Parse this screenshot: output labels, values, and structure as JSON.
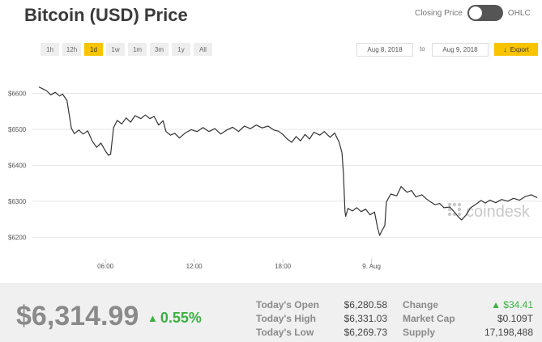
{
  "header": {
    "title": "Bitcoin (USD) Price",
    "toggle_left": "Closing Price",
    "toggle_right": "OHLC"
  },
  "ranges": [
    "1h",
    "12h",
    "1d",
    "1w",
    "1m",
    "3m",
    "1y",
    "All"
  ],
  "active_range": "1d",
  "date_from": "Aug 8, 2018",
  "date_to_word": "to",
  "date_to": "Aug 9, 2018",
  "export_label": "Export",
  "watermark": "coindesk",
  "colors": {
    "accent": "#f8c400",
    "line": "#333333",
    "positive": "#3cb043"
  },
  "chart_data": {
    "type": "line",
    "title": "",
    "xlabel": "",
    "ylabel": "",
    "ylim": [
      6140,
      6680
    ],
    "xlim": [
      1.5,
      35.2
    ],
    "y_ticks": [
      {
        "value": 6200,
        "label": "$6200"
      },
      {
        "value": 6300,
        "label": "$6300"
      },
      {
        "value": 6400,
        "label": "$6400"
      },
      {
        "value": 6500,
        "label": "$6500"
      },
      {
        "value": 6600,
        "label": "$6600"
      }
    ],
    "x_ticks": [
      {
        "value": 6,
        "label": "06:00"
      },
      {
        "value": 12,
        "label": "12:00"
      },
      {
        "value": 18,
        "label": "18:00"
      },
      {
        "value": 24,
        "label": "9. Aug"
      }
    ],
    "grid": true,
    "series": [
      {
        "values": [
          [
            1.5,
            6618
          ],
          [
            2.0,
            6608
          ],
          [
            2.3,
            6596
          ],
          [
            2.6,
            6603
          ],
          [
            2.9,
            6593
          ],
          [
            3.1,
            6598
          ],
          [
            3.4,
            6580
          ],
          [
            3.7,
            6503
          ],
          [
            3.9,
            6488
          ],
          [
            4.2,
            6498
          ],
          [
            4.5,
            6487
          ],
          [
            4.8,
            6496
          ],
          [
            5.1,
            6468
          ],
          [
            5.4,
            6450
          ],
          [
            5.7,
            6462
          ],
          [
            6.0,
            6440
          ],
          [
            6.2,
            6428
          ],
          [
            6.35,
            6430
          ],
          [
            6.55,
            6505
          ],
          [
            6.8,
            6525
          ],
          [
            7.1,
            6515
          ],
          [
            7.4,
            6532
          ],
          [
            7.7,
            6520
          ],
          [
            8.0,
            6538
          ],
          [
            8.4,
            6530
          ],
          [
            8.7,
            6540
          ],
          [
            9.0,
            6530
          ],
          [
            9.3,
            6536
          ],
          [
            9.6,
            6512
          ],
          [
            9.9,
            6524
          ],
          [
            10.1,
            6494
          ],
          [
            10.4,
            6484
          ],
          [
            10.7,
            6489
          ],
          [
            11.0,
            6476
          ],
          [
            11.4,
            6490
          ],
          [
            11.8,
            6499
          ],
          [
            12.2,
            6494
          ],
          [
            12.6,
            6505
          ],
          [
            13.0,
            6494
          ],
          [
            13.4,
            6502
          ],
          [
            13.8,
            6487
          ],
          [
            14.2,
            6498
          ],
          [
            14.6,
            6506
          ],
          [
            15.0,
            6494
          ],
          [
            15.4,
            6509
          ],
          [
            15.8,
            6502
          ],
          [
            16.2,
            6512
          ],
          [
            16.6,
            6504
          ],
          [
            17.0,
            6509
          ],
          [
            17.4,
            6498
          ],
          [
            17.7,
            6495
          ],
          [
            18.0,
            6486
          ],
          [
            18.3,
            6473
          ],
          [
            18.6,
            6464
          ],
          [
            18.9,
            6480
          ],
          [
            19.2,
            6468
          ],
          [
            19.5,
            6486
          ],
          [
            19.8,
            6473
          ],
          [
            20.1,
            6492
          ],
          [
            20.5,
            6484
          ],
          [
            20.8,
            6494
          ],
          [
            21.2,
            6478
          ],
          [
            21.5,
            6490
          ],
          [
            21.8,
            6465
          ],
          [
            22.0,
            6435
          ],
          [
            22.1,
            6378
          ],
          [
            22.2,
            6272
          ],
          [
            22.25,
            6258
          ],
          [
            22.4,
            6280
          ],
          [
            22.7,
            6273
          ],
          [
            23.0,
            6282
          ],
          [
            23.3,
            6271
          ],
          [
            23.6,
            6278
          ],
          [
            23.9,
            6262
          ],
          [
            24.2,
            6270
          ],
          [
            24.4,
            6228
          ],
          [
            24.55,
            6205
          ],
          [
            24.7,
            6218
          ],
          [
            24.9,
            6232
          ],
          [
            25.0,
            6298
          ],
          [
            25.3,
            6320
          ],
          [
            25.7,
            6315
          ],
          [
            26.0,
            6341
          ],
          [
            26.4,
            6325
          ],
          [
            26.7,
            6330
          ],
          [
            27.0,
            6312
          ],
          [
            27.4,
            6318
          ],
          [
            27.7,
            6307
          ],
          [
            28.0,
            6298
          ],
          [
            28.3,
            6290
          ],
          [
            28.6,
            6294
          ],
          [
            28.9,
            6282
          ],
          [
            29.3,
            6284
          ],
          [
            29.6,
            6270
          ],
          [
            29.9,
            6255
          ],
          [
            30.1,
            6248
          ],
          [
            30.4,
            6262
          ],
          [
            30.7,
            6282
          ],
          [
            31.0,
            6290
          ],
          [
            31.4,
            6302
          ],
          [
            31.7,
            6295
          ],
          [
            32.0,
            6303
          ],
          [
            32.4,
            6296
          ],
          [
            32.8,
            6305
          ],
          [
            33.2,
            6300
          ],
          [
            33.6,
            6308
          ],
          [
            34.0,
            6303
          ],
          [
            34.4,
            6313
          ],
          [
            34.8,
            6318
          ],
          [
            35.2,
            6310
          ]
        ]
      }
    ]
  },
  "summary": {
    "price": "$6,314.99",
    "change_pct": "0.55%",
    "stats": [
      {
        "label": "Today's Open",
        "value": "$6,280.58"
      },
      {
        "label": "Today's High",
        "value": "$6,331.03"
      },
      {
        "label": "Today's Low",
        "value": "$6,269.73"
      },
      {
        "label": "Change",
        "value": "$34.41"
      },
      {
        "label": "Market Cap",
        "value": "$0.109T"
      },
      {
        "label": "Supply",
        "value": "17,198,488"
      }
    ]
  }
}
